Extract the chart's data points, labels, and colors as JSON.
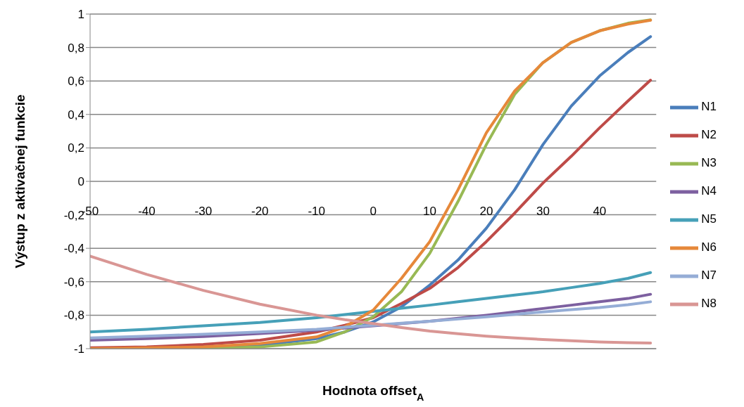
{
  "chart_data": {
    "type": "line",
    "xlabel": "Hodnota offset$_{A}$",
    "ylabel": "Výstup z aktivačnej funkcie",
    "x": [
      -50,
      -40,
      -30,
      -20,
      -10,
      -5,
      0,
      5,
      10,
      15,
      20,
      25,
      30,
      35,
      40,
      45,
      49
    ],
    "xlim": [
      -50,
      50
    ],
    "xticks": [
      -50,
      -40,
      -30,
      -20,
      -10,
      0,
      10,
      20,
      30,
      40
    ],
    "ylim": [
      -1,
      1
    ],
    "yticks": [
      {
        "value": -1,
        "label": "-1"
      },
      {
        "value": -0.8,
        "label": "-0,8"
      },
      {
        "value": -0.6,
        "label": "-0,6"
      },
      {
        "value": -0.4,
        "label": "-0,4"
      },
      {
        "value": -0.2,
        "label": "-0,2"
      },
      0,
      {
        "value": 0.2,
        "label": "0,2"
      },
      {
        "value": 0.4,
        "label": "0,4"
      },
      {
        "value": 0.6,
        "label": "0,6"
      },
      {
        "value": 0.8,
        "label": "0,8"
      },
      1
    ],
    "grid": "y",
    "legend": "right",
    "marker": "none",
    "line_style": "solid",
    "series": [
      {
        "name": "N1",
        "color": "#4a7ebb",
        "values": [
          null,
          null,
          -0.99,
          -0.98,
          -0.94,
          -0.9,
          -0.84,
          -0.75,
          -0.62,
          -0.47,
          -0.28,
          -0.05,
          0.22,
          0.45,
          0.63,
          0.77,
          0.865
        ]
      },
      {
        "name": "N2",
        "color": "#be4b48",
        "values": [
          -0.995,
          -0.99,
          -0.975,
          -0.95,
          -0.9,
          -0.86,
          -0.815,
          -0.73,
          -0.64,
          -0.515,
          -0.36,
          -0.19,
          -0.01,
          0.15,
          0.32,
          0.48,
          0.605
        ]
      },
      {
        "name": "N3",
        "color": "#98b954",
        "values": [
          -1,
          -1,
          -1,
          -0.99,
          -0.96,
          -0.9,
          -0.81,
          -0.66,
          -0.43,
          -0.12,
          0.22,
          0.52,
          0.71,
          0.83,
          0.9,
          0.945,
          0.965
        ]
      },
      {
        "name": "N4",
        "color": "#7d60a0",
        "values": [
          -0.95,
          -0.94,
          -0.928,
          -0.91,
          -0.89,
          -0.877,
          -0.863,
          -0.85,
          -0.836,
          -0.818,
          -0.8,
          -0.78,
          -0.76,
          -0.74,
          -0.72,
          -0.7,
          -0.675
        ]
      },
      {
        "name": "N5",
        "color": "#46a0b8",
        "values": [
          -0.9,
          -0.884,
          -0.863,
          -0.843,
          -0.815,
          -0.796,
          -0.777,
          -0.758,
          -0.74,
          -0.72,
          -0.7,
          -0.68,
          -0.66,
          -0.635,
          -0.61,
          -0.58,
          -0.545
        ]
      },
      {
        "name": "N6",
        "color": "#e6883a",
        "values": [
          -1,
          -0.995,
          -0.99,
          -0.97,
          -0.93,
          -0.87,
          -0.77,
          -0.58,
          -0.36,
          -0.05,
          0.29,
          0.54,
          0.71,
          0.83,
          0.9,
          0.94,
          0.963
        ]
      },
      {
        "name": "N7",
        "color": "#95add6",
        "values": [
          -0.936,
          -0.925,
          -0.914,
          -0.9,
          -0.884,
          -0.872,
          -0.86,
          -0.848,
          -0.836,
          -0.823,
          -0.81,
          -0.795,
          -0.78,
          -0.767,
          -0.754,
          -0.737,
          -0.72
        ]
      },
      {
        "name": "N8",
        "color": "#d99694",
        "values": [
          -0.447,
          -0.556,
          -0.652,
          -0.734,
          -0.8,
          -0.827,
          -0.85,
          -0.874,
          -0.895,
          -0.911,
          -0.925,
          -0.936,
          -0.945,
          -0.953,
          -0.96,
          -0.964,
          -0.966
        ]
      }
    ]
  }
}
